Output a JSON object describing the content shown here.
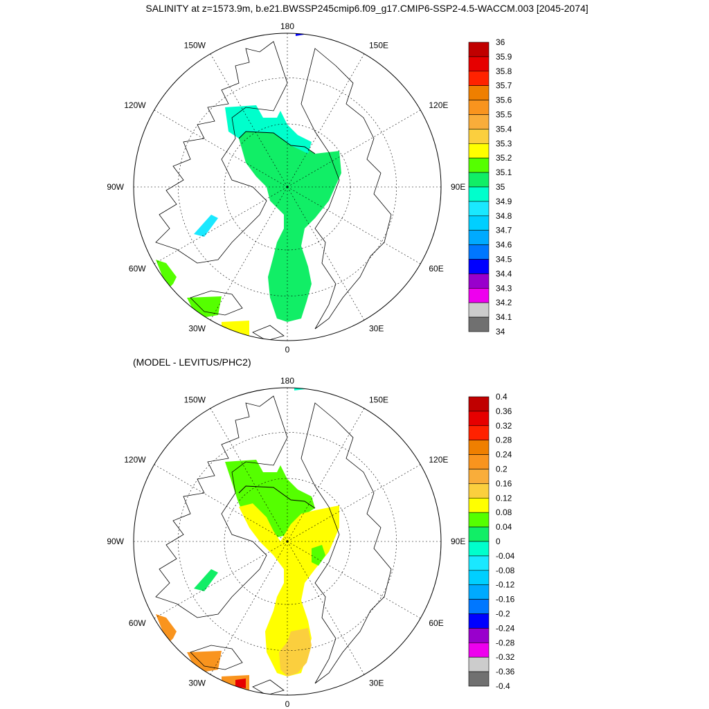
{
  "title": "SALINITY at z=1573.9m, b.e21.BWSSP245cmip6.f09_g17.CMIP6-SSP2-4.5-WACCM.003 [2045-2074]",
  "top_panel": {
    "longitude_labels": [
      "180",
      "150E",
      "120E",
      "90E",
      "60E",
      "30E",
      "0",
      "30W",
      "60W",
      "90W",
      "120W",
      "150W"
    ],
    "colorbar": {
      "labels": [
        "36",
        "35.9",
        "35.8",
        "35.7",
        "35.6",
        "35.5",
        "35.4",
        "35.3",
        "35.2",
        "35.1",
        "35",
        "34.9",
        "34.8",
        "34.7",
        "34.6",
        "34.5",
        "34.4",
        "34.3",
        "34.2",
        "34.1",
        "34"
      ],
      "colors": [
        "#c00000",
        "#e60000",
        "#ff2200",
        "#ef7f00",
        "#f9941e",
        "#f9ad3a",
        "#fbcf3e",
        "#ffff00",
        "#55ff00",
        "#11ee66",
        "#00ffcc",
        "#1ae8ff",
        "#00cfff",
        "#00aaff",
        "#0077ff",
        "#0000ff",
        "#9900cc",
        "#ee00ee",
        "#cccccc",
        "#707070"
      ]
    },
    "fill_colors": {
      "main": "#11ee66",
      "upper": "#00ffcc",
      "lab": "#1ae8ff",
      "nw_patch": "#55ff00",
      "sw_patch": "#55ff00",
      "s_patch": "#ffff00",
      "top_patch": "#0000ff"
    }
  },
  "bottom_panel": {
    "subtitle": "(MODEL - LEVITUS/PHC2)",
    "longitude_labels": [
      "180",
      "150E",
      "120E",
      "90E",
      "60E",
      "30E",
      "0",
      "30W",
      "60W",
      "90W",
      "120W",
      "150W"
    ],
    "colorbar": {
      "labels": [
        "0.4",
        "0.36",
        "0.32",
        "0.28",
        "0.24",
        "0.2",
        "0.16",
        "0.12",
        "0.08",
        "0.04",
        "0",
        "-0.04",
        "-0.08",
        "-0.12",
        "-0.16",
        "-0.2",
        "-0.24",
        "-0.28",
        "-0.32",
        "-0.36",
        "-0.4"
      ],
      "colors": [
        "#c00000",
        "#e60000",
        "#ff2200",
        "#ef7f00",
        "#f9941e",
        "#f9ad3a",
        "#fbcf3e",
        "#ffff00",
        "#55ff00",
        "#11ee66",
        "#00ffcc",
        "#1ae8ff",
        "#00cfff",
        "#00aaff",
        "#0077ff",
        "#0000ff",
        "#9900cc",
        "#ee00ee",
        "#cccccc",
        "#707070"
      ]
    },
    "fill_colors": {
      "main": "#ffff00",
      "upper": "#55ff00",
      "right_inset": "#55ff00",
      "lab": "#11ee66",
      "nw_patch": "#f9941e",
      "sw_patch": "#f9941e",
      "s_patch": "#f9941e",
      "red_dot": "#e60000",
      "top_patch": "#00ffcc",
      "gold": "#fbcf3e"
    }
  }
}
